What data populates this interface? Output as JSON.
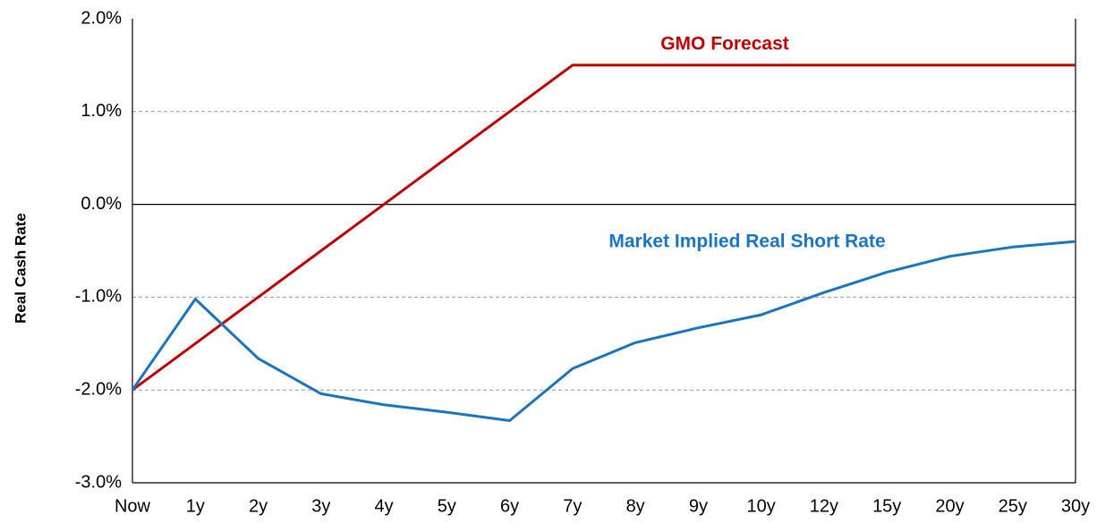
{
  "chart_data": {
    "type": "line",
    "y_label": "Real Cash Rate",
    "categories": [
      "Now",
      "1y",
      "2y",
      "3y",
      "4y",
      "5y",
      "6y",
      "7y",
      "8y",
      "9y",
      "10y",
      "12y",
      "15y",
      "20y",
      "25y",
      "30y"
    ],
    "series": [
      {
        "name": "GMO Forecast",
        "color": "#c00000",
        "values": [
          -2.0,
          -1.5,
          -1.0,
          -0.5,
          0.0,
          0.5,
          1.0,
          1.5,
          1.5,
          1.5,
          1.5,
          1.5,
          1.5,
          1.5,
          1.5,
          1.5
        ]
      },
      {
        "name": "Market Implied Real Short Rate",
        "color": "#1a74c0",
        "values": [
          -2.0,
          -1.02,
          -1.66,
          -2.04,
          -2.16,
          -2.24,
          -2.33,
          -1.77,
          -1.49,
          -1.33,
          -1.19,
          -0.95,
          -0.73,
          -0.56,
          -0.46,
          -0.4
        ]
      }
    ],
    "ylim": [
      -3.0,
      2.0
    ],
    "yticks": [
      {
        "value": -3.0,
        "label": "-3.0%"
      },
      {
        "value": -2.0,
        "label": "-2.0%"
      },
      {
        "value": -1.0,
        "label": "-1.0%"
      },
      {
        "value": 0.0,
        "label": "0.0%"
      },
      {
        "value": 1.0,
        "label": "1.0%"
      },
      {
        "value": 2.0,
        "label": "2.0%"
      }
    ],
    "grid": true
  }
}
